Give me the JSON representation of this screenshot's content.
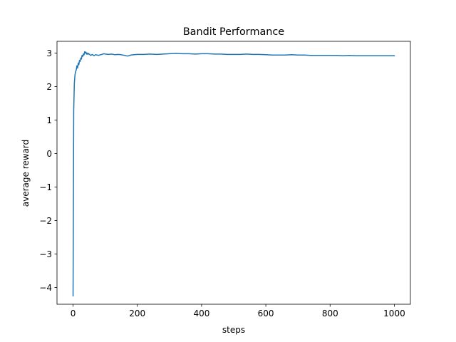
{
  "chart_data": {
    "type": "line",
    "title": "Bandit Performance",
    "xlabel": "steps",
    "ylabel": "average reward",
    "xlim": [
      -50,
      1050
    ],
    "ylim": [
      -4.5,
      3.35
    ],
    "x_ticks": [
      0,
      200,
      400,
      600,
      800,
      1000
    ],
    "x_tick_labels": [
      "0",
      "200",
      "400",
      "600",
      "800",
      "1000"
    ],
    "y_ticks": [
      -4,
      -3,
      -2,
      -1,
      0,
      1,
      2,
      3
    ],
    "y_tick_labels": [
      "−4",
      "−3",
      "−2",
      "−1",
      "0",
      "1",
      "2",
      "3"
    ],
    "grid": false,
    "legend": "none",
    "series": [
      {
        "color": "#1f77b4",
        "x": [
          0,
          2,
          4,
          6,
          8,
          10,
          12,
          14,
          16,
          18,
          20,
          22,
          24,
          26,
          28,
          30,
          32,
          34,
          36,
          38,
          40,
          42,
          44,
          46,
          48,
          50,
          55,
          60,
          65,
          70,
          75,
          80,
          85,
          90,
          95,
          100,
          110,
          120,
          130,
          140,
          150,
          160,
          170,
          180,
          190,
          200,
          220,
          240,
          260,
          280,
          300,
          320,
          340,
          360,
          380,
          400,
          420,
          440,
          460,
          480,
          500,
          520,
          540,
          560,
          580,
          600,
          620,
          640,
          660,
          680,
          700,
          720,
          740,
          760,
          780,
          800,
          820,
          840,
          860,
          880,
          900,
          920,
          940,
          960,
          980,
          1000
        ],
        "y": [
          -4.25,
          1.3,
          2.1,
          2.35,
          2.45,
          2.5,
          2.62,
          2.55,
          2.7,
          2.65,
          2.78,
          2.75,
          2.85,
          2.82,
          2.93,
          2.9,
          2.97,
          2.94,
          3.04,
          3.0,
          3.03,
          2.97,
          3.0,
          2.96,
          2.99,
          2.97,
          2.93,
          2.96,
          2.92,
          2.95,
          2.94,
          2.93,
          2.95,
          2.96,
          2.98,
          2.97,
          2.96,
          2.97,
          2.95,
          2.96,
          2.95,
          2.93,
          2.91,
          2.94,
          2.95,
          2.96,
          2.96,
          2.97,
          2.96,
          2.97,
          2.98,
          2.99,
          2.98,
          2.98,
          2.97,
          2.98,
          2.98,
          2.97,
          2.97,
          2.96,
          2.96,
          2.96,
          2.97,
          2.96,
          2.96,
          2.95,
          2.94,
          2.94,
          2.94,
          2.95,
          2.94,
          2.94,
          2.93,
          2.93,
          2.93,
          2.93,
          2.93,
          2.92,
          2.93,
          2.92,
          2.92,
          2.92,
          2.92,
          2.92,
          2.92,
          2.92
        ]
      }
    ]
  }
}
